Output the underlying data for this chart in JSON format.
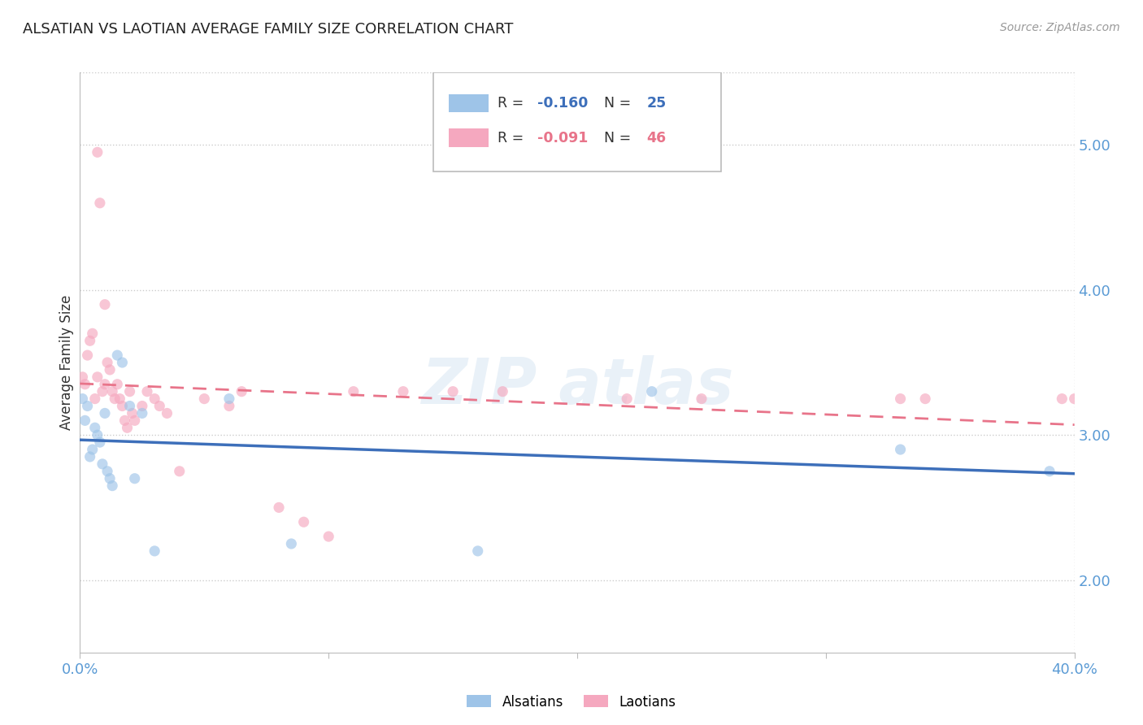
{
  "title": "ALSATIAN VS LAOTIAN AVERAGE FAMILY SIZE CORRELATION CHART",
  "source": "Source: ZipAtlas.com",
  "ylabel": "Average Family Size",
  "xlim": [
    0.0,
    0.4
  ],
  "ylim": [
    1.5,
    5.5
  ],
  "yticks": [
    2.0,
    3.0,
    4.0,
    5.0
  ],
  "background_color": "#ffffff",
  "alsatians_x": [
    0.001,
    0.002,
    0.003,
    0.004,
    0.005,
    0.006,
    0.007,
    0.008,
    0.009,
    0.01,
    0.011,
    0.012,
    0.013,
    0.015,
    0.017,
    0.02,
    0.022,
    0.025,
    0.03,
    0.06,
    0.085,
    0.16,
    0.23,
    0.33,
    0.39
  ],
  "alsatians_y": [
    3.25,
    3.1,
    3.2,
    2.85,
    2.9,
    3.05,
    3.0,
    2.95,
    2.8,
    3.15,
    2.75,
    2.7,
    2.65,
    3.55,
    3.5,
    3.2,
    2.7,
    3.15,
    2.2,
    3.25,
    2.25,
    2.2,
    3.3,
    2.9,
    2.75
  ],
  "laotians_x": [
    0.001,
    0.002,
    0.003,
    0.004,
    0.005,
    0.006,
    0.007,
    0.007,
    0.008,
    0.009,
    0.01,
    0.01,
    0.011,
    0.012,
    0.013,
    0.014,
    0.015,
    0.016,
    0.017,
    0.018,
    0.019,
    0.02,
    0.021,
    0.022,
    0.025,
    0.027,
    0.03,
    0.032,
    0.035,
    0.04,
    0.05,
    0.06,
    0.065,
    0.08,
    0.09,
    0.1,
    0.11,
    0.13,
    0.15,
    0.17,
    0.22,
    0.25,
    0.33,
    0.34,
    0.395,
    0.4
  ],
  "laotians_y": [
    3.4,
    3.35,
    3.55,
    3.65,
    3.7,
    3.25,
    3.4,
    4.95,
    4.6,
    3.3,
    3.35,
    3.9,
    3.5,
    3.45,
    3.3,
    3.25,
    3.35,
    3.25,
    3.2,
    3.1,
    3.05,
    3.3,
    3.15,
    3.1,
    3.2,
    3.3,
    3.25,
    3.2,
    3.15,
    2.75,
    3.25,
    3.2,
    3.3,
    2.5,
    2.4,
    2.3,
    3.3,
    3.3,
    3.3,
    3.3,
    3.25,
    3.25,
    3.25,
    3.25,
    3.25,
    3.25
  ],
  "alsatian_color": "#9ec4e8",
  "laotian_color": "#f5a8bf",
  "alsatian_line_color": "#3d6fba",
  "laotian_line_color": "#e8748a",
  "marker_size": 90,
  "marker_alpha": 0.65,
  "grid_color": "#cccccc",
  "tick_color": "#5b9bd5",
  "axis_color": "#bbbbbb",
  "legend_R1": "R = -0.160",
  "legend_N1": "N = 25",
  "legend_R2": "R = -0.091",
  "legend_N2": "N = 46"
}
